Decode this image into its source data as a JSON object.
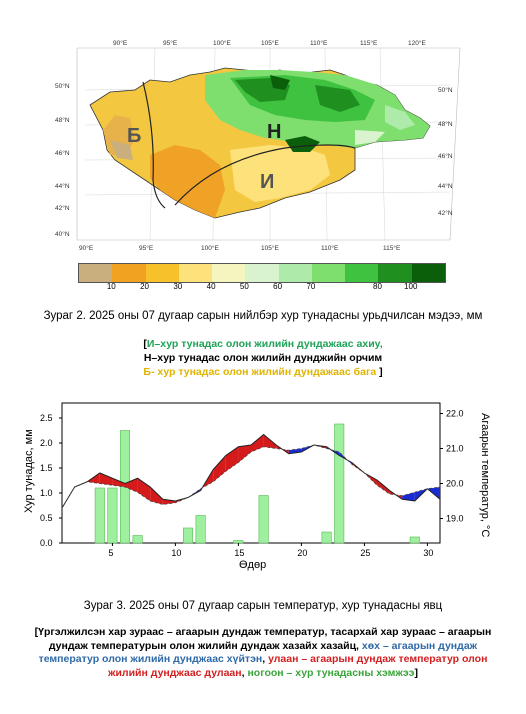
{
  "map": {
    "top_lon_labels": [
      "90°E",
      "95°E",
      "100°E",
      "105°E",
      "110°E",
      "115°E",
      "120°E"
    ],
    "bottom_lon_labels": [
      "90°E",
      "95°E",
      "100°E",
      "105°E",
      "110°E",
      "115°E"
    ],
    "left_lat_labels": [
      "50°N",
      "48°N",
      "46°N",
      "44°N",
      "42°N",
      "40°N"
    ],
    "right_lat_labels": [
      "50°N",
      "48°N",
      "46°N",
      "44°N",
      "42°N"
    ],
    "zone_labels": {
      "b": "Б",
      "n": "Н",
      "i": "И"
    },
    "colorbar": {
      "colors": [
        "#c9ae7e",
        "#f1a221",
        "#f7c12b",
        "#fde27c",
        "#f5f5c0",
        "#d9f3cf",
        "#aeebaa",
        "#7ede6e",
        "#3fc23f",
        "#1f8f1f",
        "#0b5f0b"
      ],
      "labels": [
        "10",
        "20",
        "30",
        "40",
        "50",
        "60",
        "70",
        "80",
        "100"
      ]
    }
  },
  "caption1": "Зураг 2. 2025 оны 07 дугаар сарын нийлбэр хур тунадасны урьдчилсан мэдээ, мм",
  "legend1": {
    "line1_open": "[",
    "line1_text": "И–хур тунадас олон жилийн дундажаас ахиу,",
    "line2": "Н–хур тунадас олон жилийн дунджийн орчим",
    "line3_text": "Б- хур тунадас олон жилийн дундажаас бага",
    "line3_close": " ]"
  },
  "chart_data": {
    "type": "combo",
    "xlabel": "Өдөр",
    "ylabel_left": "Хур тунадас, мм",
    "ylabel_right": "Агаарын температур, °C",
    "x_ticks": [
      5,
      10,
      15,
      20,
      25,
      30
    ],
    "y_left_ticks": [
      "0.0",
      "0.5",
      "1.0",
      "1.5",
      "2.0",
      "2.5"
    ],
    "y_right_ticks": [
      "19.0",
      "20.0",
      "21.0",
      "22.0"
    ],
    "xlim": [
      1,
      31
    ],
    "ylim_left": [
      0,
      2.8
    ],
    "ylim_right": [
      18.3,
      22.3
    ],
    "precip": {
      "days": [
        4,
        5,
        6,
        7,
        11,
        12,
        15,
        17,
        22,
        23,
        29
      ],
      "values": [
        1.1,
        1.1,
        2.25,
        0.15,
        0.3,
        0.55,
        0.05,
        0.95,
        0.22,
        2.38,
        0.12
      ]
    },
    "temp_actual": [
      19.3,
      19.9,
      20.05,
      20.3,
      20.15,
      20.0,
      20.15,
      19.9,
      19.55,
      19.5,
      19.6,
      19.8,
      20.4,
      20.8,
      21.05,
      21.1,
      21.4,
      21.1,
      20.85,
      20.9,
      21.1,
      21.05,
      20.8,
      20.6,
      20.3,
      20.1,
      19.8,
      19.55,
      19.5,
      19.85,
      19.55
    ],
    "temp_normal": [
      19.3,
      19.9,
      20.05,
      20.0,
      19.95,
      19.9,
      19.75,
      19.5,
      19.4,
      19.45,
      19.6,
      19.85,
      20.05,
      20.35,
      20.6,
      20.9,
      21.05,
      21.0,
      20.95,
      21.0,
      21.1,
      21.0,
      20.9,
      20.55,
      20.3,
      19.95,
      19.7,
      19.65,
      19.75,
      19.85,
      19.9
    ]
  },
  "caption2": "Зураг 3. 2025 оны 07 дугаар сарын температур, хур тунадасны явц",
  "legend2": {
    "part1": "[Үргэлжилсэн хар зураас – агаарын дундаж температур, тасархай хар зураас – агаарын дундаж температурын олон жилийн дундаж хазайх хазайц, ",
    "part_blue": "хөх – агаарын дундаж температур олон жилийн дунджаас хүйтэн",
    "sep1": ", ",
    "part_red": "улаан – агаарын дундаж температур олон жилийн дунджаас дулаан",
    "sep2": ", ",
    "part_green": "ногоон – хур тунадасны хэмжээ",
    "close": "]"
  }
}
